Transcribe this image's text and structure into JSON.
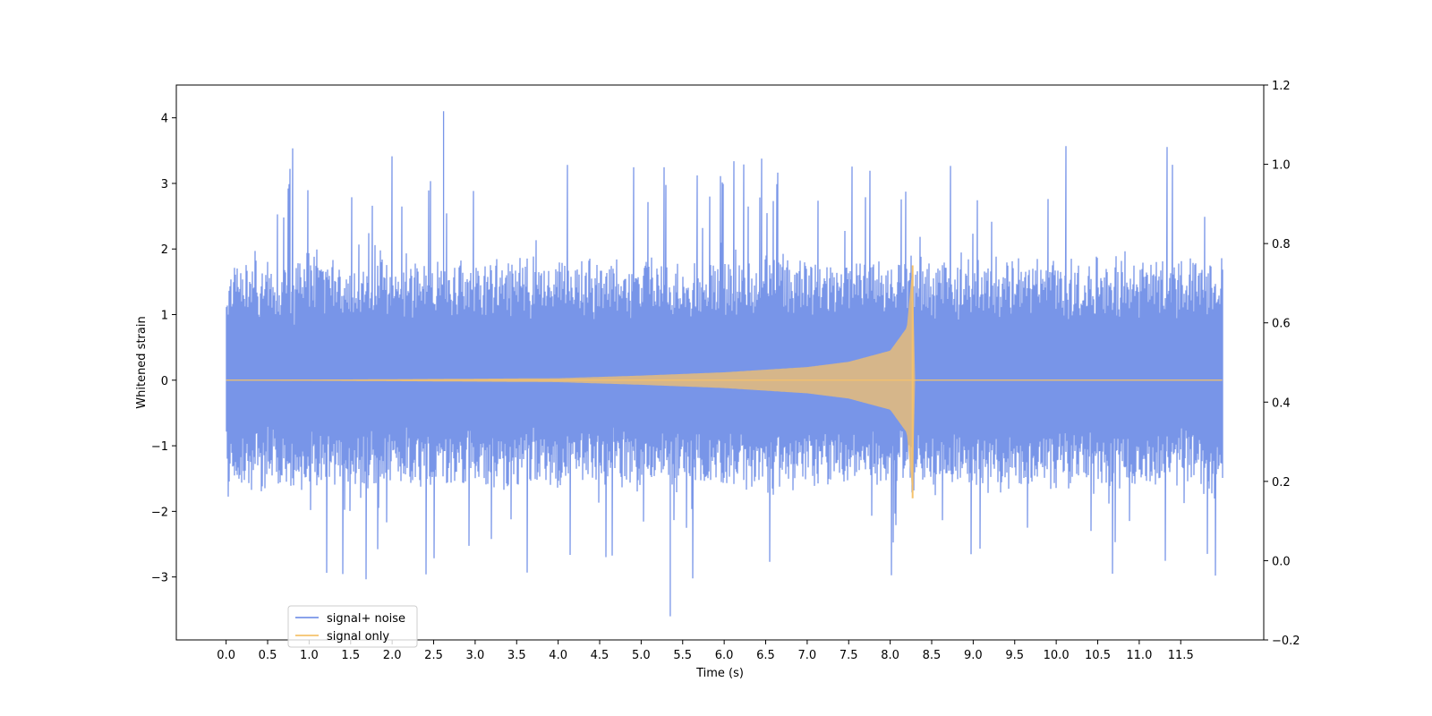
{
  "chart_data": {
    "type": "line",
    "title": "",
    "xlabel": "Time (s)",
    "ylabel": "Whitened strain",
    "xlim": [
      -0.6,
      12.5
    ],
    "ylim": [
      -3.96,
      4.5
    ],
    "y2lim": [
      -0.2,
      1.2
    ],
    "xticks": [
      0.0,
      0.5,
      1.0,
      1.5,
      2.0,
      2.5,
      3.0,
      3.5,
      4.0,
      4.5,
      5.0,
      5.5,
      6.0,
      6.5,
      7.0,
      7.5,
      8.0,
      8.5,
      9.0,
      9.5,
      10.0,
      10.5,
      11.0,
      11.5
    ],
    "xtick_labels": [
      "0.0",
      "0.5",
      "1.0",
      "1.5",
      "2.0",
      "2.5",
      "3.0",
      "3.5",
      "4.0",
      "4.5",
      "5.0",
      "5.5",
      "6.0",
      "6.5",
      "7.0",
      "7.5",
      "8.0",
      "8.5",
      "9.0",
      "9.5",
      "10.0",
      "10.5",
      "11.0",
      "11.5"
    ],
    "yticks": [
      -3,
      -2,
      -1,
      0,
      1,
      2,
      3,
      4
    ],
    "ytick_labels": [
      "−3",
      "−2",
      "−1",
      "0",
      "1",
      "2",
      "3",
      "4"
    ],
    "y2ticks": [
      -0.2,
      0.0,
      0.2,
      0.4,
      0.6,
      0.8,
      1.0,
      1.2
    ],
    "y2tick_labels": [
      "−0.2",
      "0.0",
      "0.2",
      "0.4",
      "0.6",
      "0.8",
      "1.0",
      "1.2"
    ],
    "grid": false,
    "legend_position": "bottom-left",
    "series": [
      {
        "name": "signal+ noise",
        "color": "#7895e8",
        "kind": "noise",
        "x_range": [
          0.0,
          12.0
        ],
        "typical_range": [
          -1.6,
          1.8
        ],
        "peak_max": 4.1,
        "peak_min": -3.6
      },
      {
        "name": "signal only",
        "color": "#f5c26b",
        "kind": "chirp",
        "x_range": [
          0.0,
          12.0
        ],
        "merger_time": 8.27,
        "envelope": [
          [
            0.0,
            0.0
          ],
          [
            4.0,
            0.03
          ],
          [
            5.0,
            0.07
          ],
          [
            6.0,
            0.12
          ],
          [
            7.0,
            0.2
          ],
          [
            7.5,
            0.28
          ],
          [
            8.0,
            0.45
          ],
          [
            8.2,
            0.8
          ],
          [
            8.27,
            1.75
          ],
          [
            8.3,
            0.0
          ],
          [
            12.0,
            0.0
          ]
        ]
      }
    ]
  }
}
